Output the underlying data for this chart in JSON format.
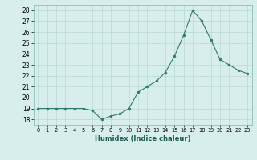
{
  "x": [
    0,
    1,
    2,
    3,
    4,
    5,
    6,
    7,
    8,
    9,
    10,
    11,
    12,
    13,
    14,
    15,
    16,
    17,
    18,
    19,
    20,
    21,
    22,
    23
  ],
  "y": [
    19,
    19,
    19,
    19,
    19,
    19,
    18.8,
    18.0,
    18.3,
    18.5,
    19.0,
    20.5,
    21.0,
    21.5,
    22.3,
    23.8,
    25.7,
    28.0,
    27.0,
    25.3,
    23.5,
    23.0,
    22.5,
    22.2
  ],
  "xlabel": "Humidex (Indice chaleur)",
  "line_color": "#2d7a6e",
  "marker_color": "#2d7a6e",
  "bg_color": "#d8eeec",
  "grid_color": "#b8d8d4",
  "ylim": [
    17.5,
    28.5
  ],
  "yticks": [
    18,
    19,
    20,
    21,
    22,
    23,
    24,
    25,
    26,
    27,
    28
  ],
  "xlim": [
    -0.5,
    23.5
  ],
  "xtick_labels": [
    "0",
    "1",
    "2",
    "3",
    "4",
    "5",
    "6",
    "7",
    "8",
    "9",
    "10",
    "11",
    "12",
    "13",
    "14",
    "15",
    "16",
    "17",
    "18",
    "19",
    "20",
    "21",
    "22",
    "23"
  ]
}
